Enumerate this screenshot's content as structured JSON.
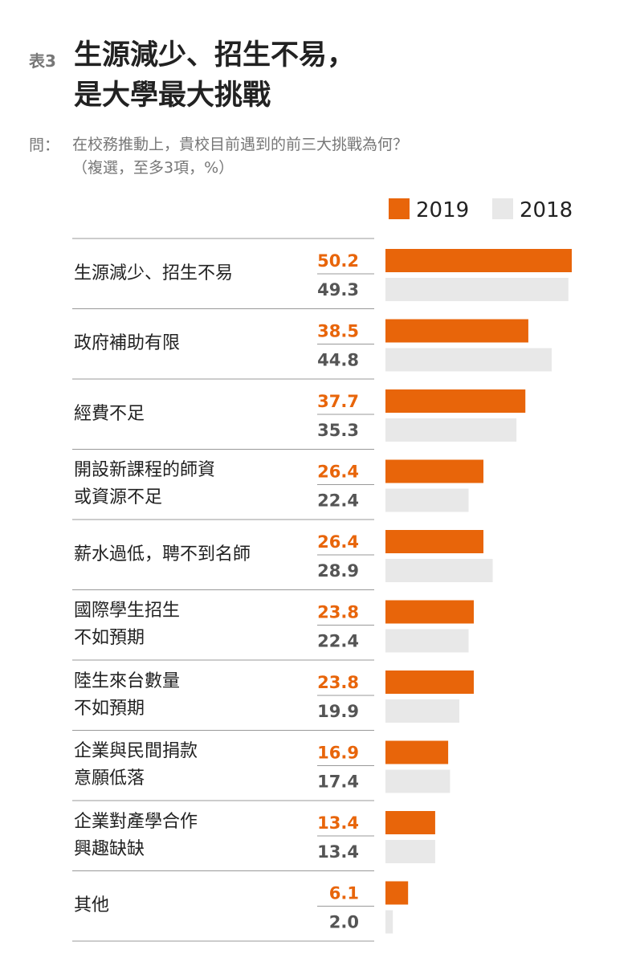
{
  "chart_data": {
    "type": "bar",
    "orientation": "horizontal",
    "table_label": "表3",
    "title": "生源減少、招生不易，\n是大學最大挑戰",
    "question_label": "問：",
    "subtitle": "在校務推動上，貴校目前遇到的前三大挑戰為何？\n（複選，至多3項，%）",
    "categories": [
      "生源減少、招生不易",
      "政府補助有限",
      "經費不足",
      "開設新課程的師資\n或資源不足",
      "薪水過低，聘不到名師",
      "國際學生招生\n不如預期",
      "陸生來台數量\n不如預期",
      "企業與民間捐款\n意願低落",
      "企業對產學合作\n興趣缺缺",
      "其他"
    ],
    "series": [
      {
        "name": "2019",
        "color": "#e8650a",
        "label_color": "#e8650a",
        "values": [
          50.2,
          38.5,
          37.7,
          26.4,
          26.4,
          23.8,
          23.8,
          16.9,
          13.4,
          6.1
        ],
        "value_labels": [
          "50.2",
          "38.5",
          "37.7",
          "26.4",
          "26.4",
          "23.8",
          "23.8",
          "16.9",
          "13.4",
          "6.1"
        ]
      },
      {
        "name": "2018",
        "color": "#e8e8e8",
        "label_color": "#555555",
        "values": [
          49.3,
          44.8,
          35.3,
          22.4,
          28.9,
          22.4,
          19.9,
          17.4,
          13.4,
          2.0
        ],
        "value_labels": [
          "49.3",
          "44.8",
          "35.3",
          "22.4",
          "28.9",
          "22.4",
          "19.9",
          "17.4",
          "13.4",
          "2.0"
        ]
      }
    ]
  }
}
